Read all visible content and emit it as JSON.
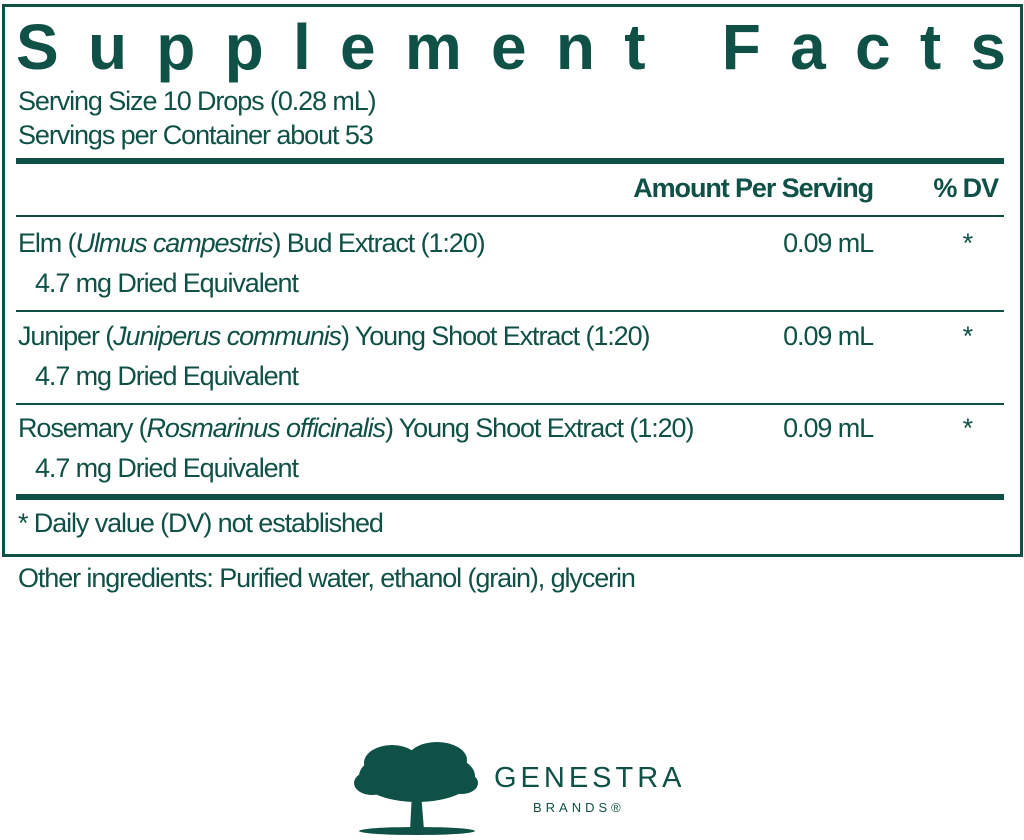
{
  "label": {
    "title": "Supplement Facts",
    "serving_size": "Serving Size 10 Drops (0.28 mL)",
    "servings_per_container": "Servings per Container about 53",
    "header": {
      "amount": "Amount Per Serving",
      "dv": "% DV"
    },
    "rows": [
      {
        "name_pre": "Elm (",
        "latin": "Ulmus campestris",
        "name_post": ") Bud Extract (1:20)",
        "sub": "4.7 mg Dried Equivalent",
        "amount": "0.09 mL",
        "dv": "*"
      },
      {
        "name_pre": "Juniper (",
        "latin": "Juniperus communis",
        "name_post": ") Young Shoot Extract (1:20)",
        "sub": "4.7 mg Dried Equivalent",
        "amount": "0.09 mL",
        "dv": "*"
      },
      {
        "name_pre": "Rosemary (",
        "latin": "Rosmarinus officinalis",
        "name_post": ") Young Shoot Extract (1:20)",
        "sub": "4.7 mg Dried Equivalent",
        "amount": "0.09 mL",
        "dv": "*"
      }
    ],
    "footnote": "* Daily value (DV) not established"
  },
  "other_ingredients": "Other ingredients: Purified water, ethanol (grain), glycerin",
  "brand": {
    "name": "GENESTRA",
    "sub": "BRANDS®",
    "icon": "tree-icon"
  },
  "colors": {
    "primary": "#0f5147"
  }
}
